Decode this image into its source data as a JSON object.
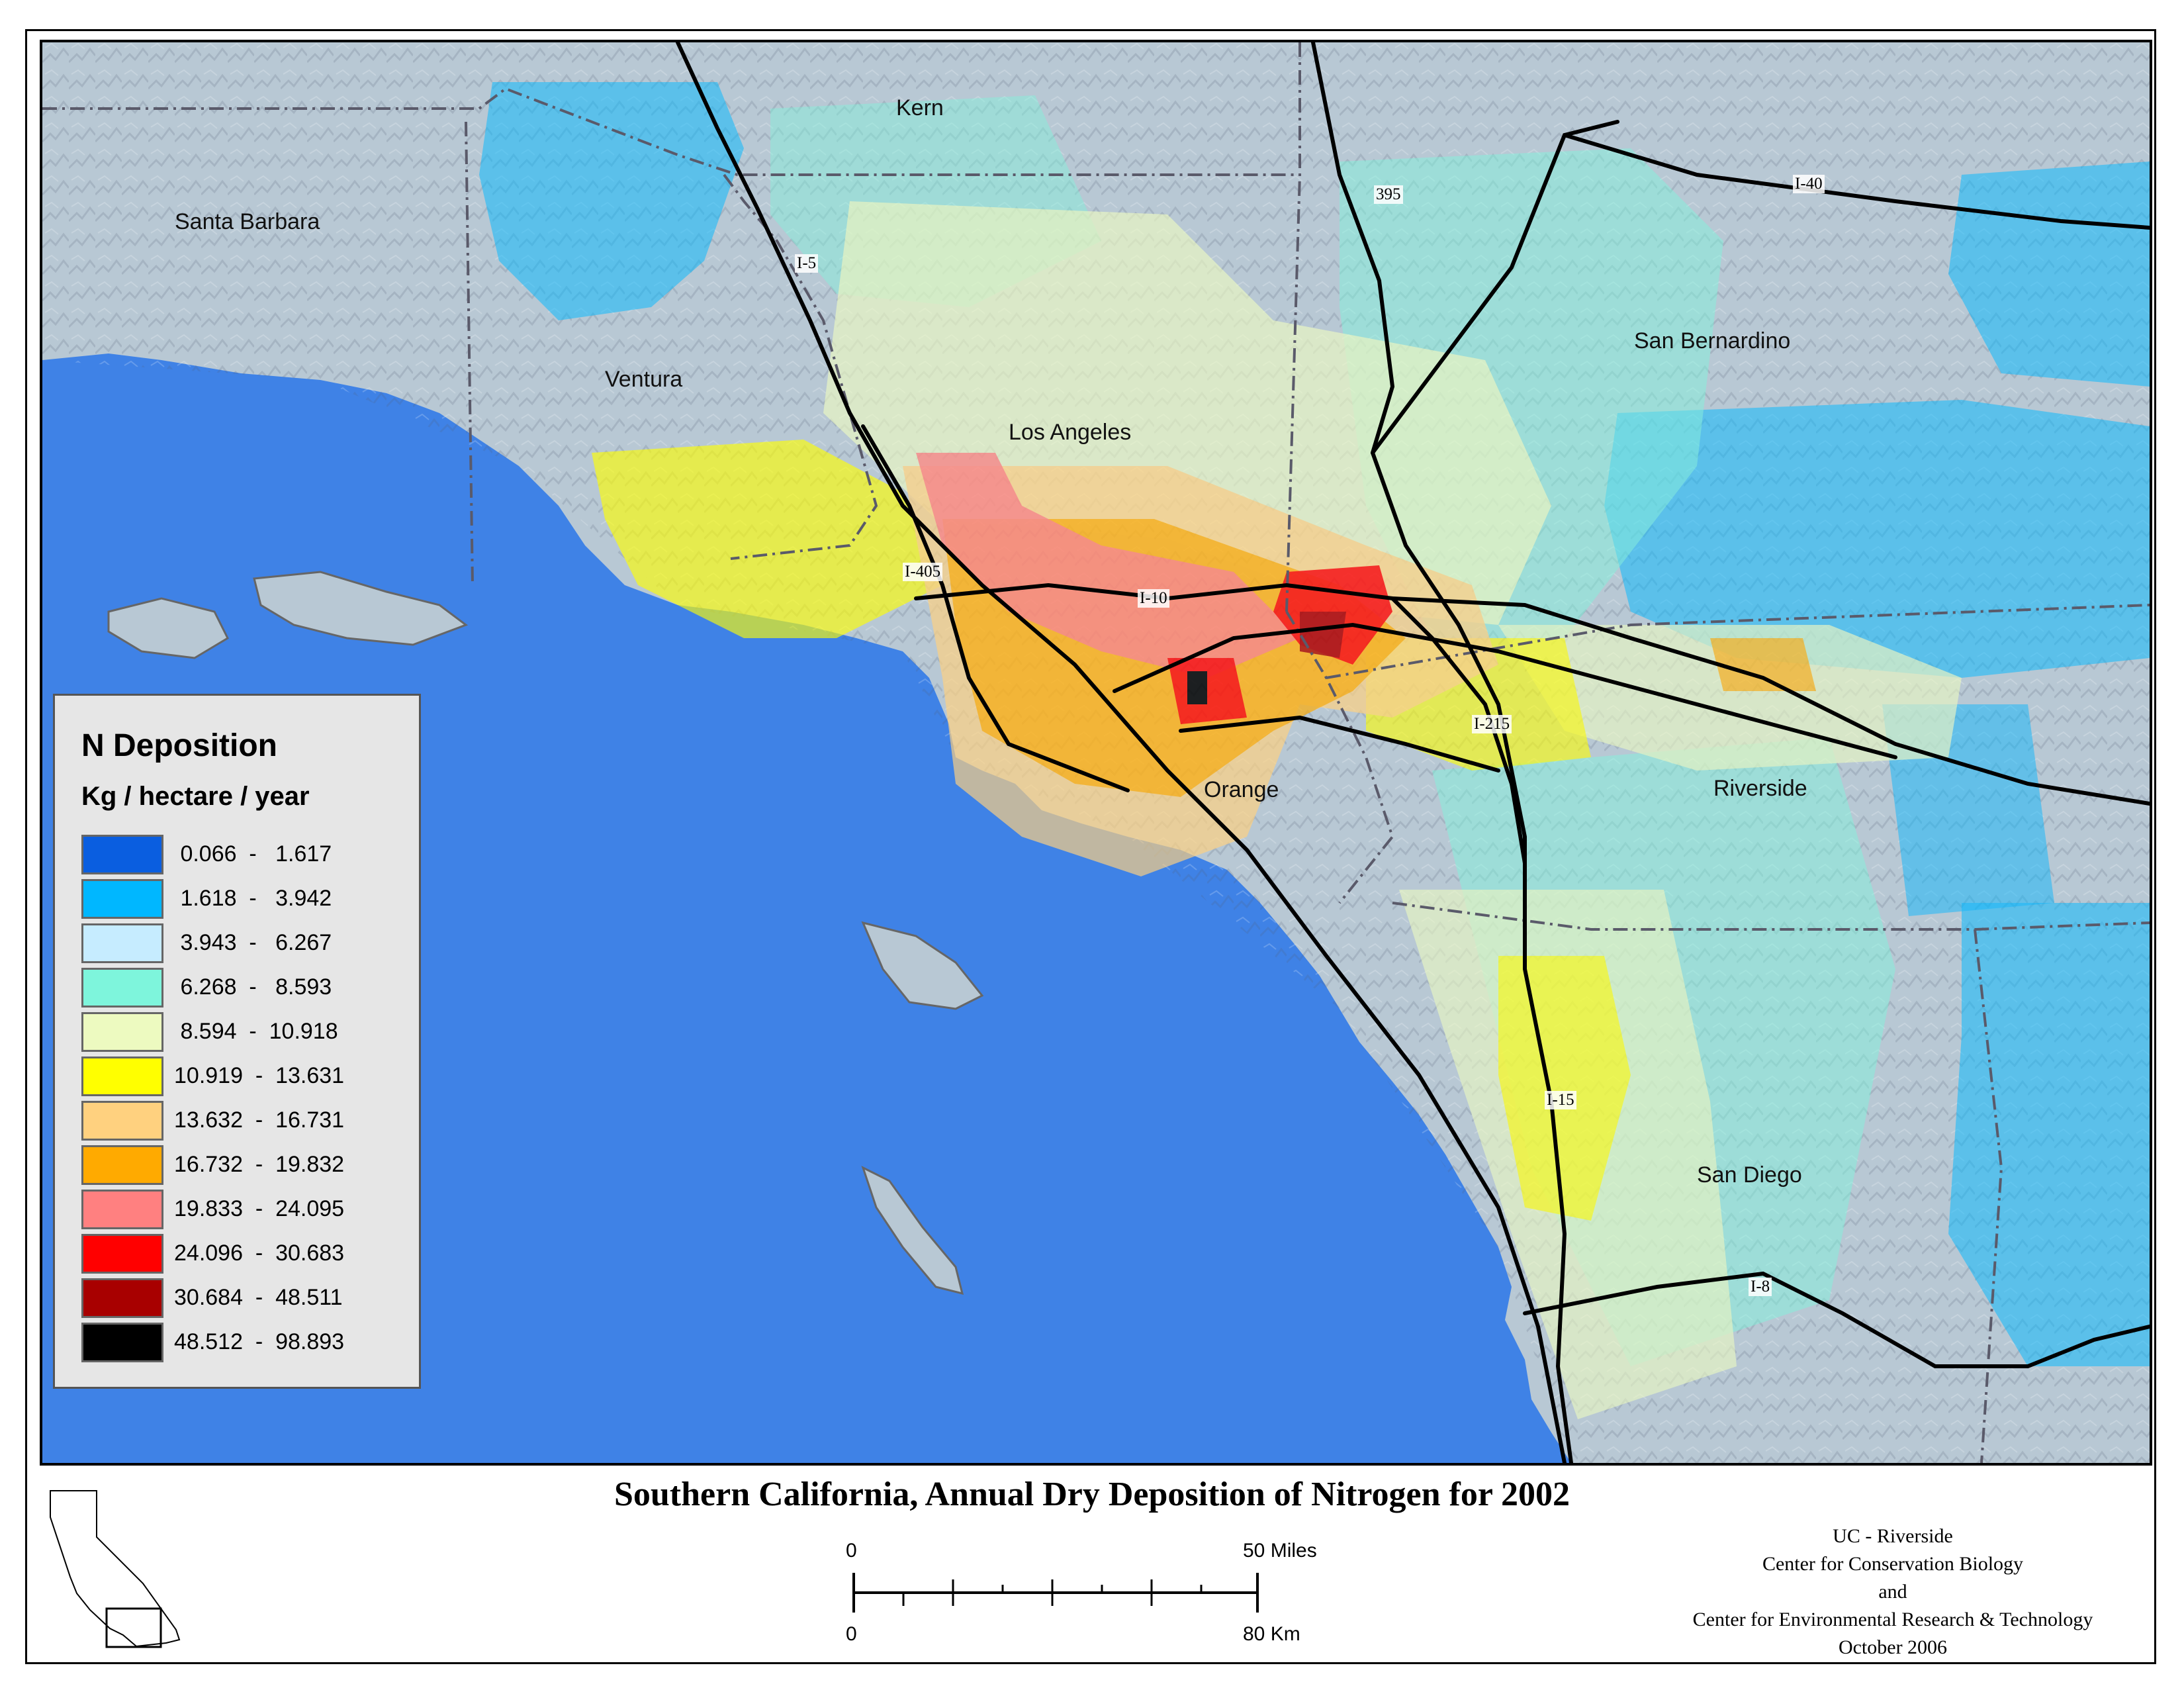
{
  "title": "Southern California, Annual Dry Deposition of Nitrogen for 2002",
  "legend": {
    "title": "N Deposition",
    "units": "Kg / hectare / year",
    "classes": [
      {
        "range": " 0.066  -   1.617",
        "color": "#0a5ee0"
      },
      {
        "range": " 1.618  -   3.942",
        "color": "#00b7ff"
      },
      {
        "range": " 3.943  -   6.267",
        "color": "#c6ecff"
      },
      {
        "range": " 6.268  -   8.593",
        "color": "#7ef5dc"
      },
      {
        "range": " 8.594  -  10.918",
        "color": "#edfac0"
      },
      {
        "range": "10.919  -  13.631",
        "color": "#ffff00"
      },
      {
        "range": "13.632  -  16.731",
        "color": "#ffd17f"
      },
      {
        "range": "16.732  -  19.832",
        "color": "#ffaa00"
      },
      {
        "range": "19.833  -  24.095",
        "color": "#ff8080"
      },
      {
        "range": "24.096  -  30.683",
        "color": "#ff0000"
      },
      {
        "range": "30.684  -  48.511",
        "color": "#a80000"
      },
      {
        "range": "48.512  -  98.893",
        "color": "#000000"
      }
    ]
  },
  "counties": {
    "kern": "Kern",
    "santa_barbara": "Santa Barbara",
    "san_bernardino": "San Bernardino",
    "ventura": "Ventura",
    "los_angeles": "Los Angeles",
    "orange": "Orange",
    "riverside": "Riverside",
    "san_diego": "San Diego"
  },
  "highways": {
    "i5": "I-5",
    "us395": "395",
    "i40": "I-40",
    "i405": "I-405",
    "i10": "I-10",
    "i215": "I-215",
    "i15": "I-15",
    "i8": "I-8"
  },
  "scale_bar": {
    "miles_zero": "0",
    "miles_max": "50 Miles",
    "km_zero": "0",
    "km_max": "80 Km"
  },
  "credits": {
    "line1": "UC - Riverside",
    "line2": "Center for Conservation Biology",
    "line3": "and",
    "line4": "Center for Environmental Research & Technology",
    "line5": "October 2006"
  },
  "colors": {
    "ocean": "#3f82e6",
    "land_base": "#b4c6d6"
  }
}
